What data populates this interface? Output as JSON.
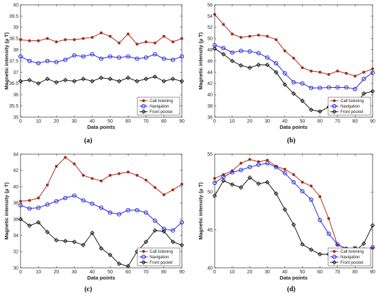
{
  "colors": {
    "call": "#a52a1a",
    "nav": "#2323e0",
    "front": "#111111"
  },
  "chart_data": [
    {
      "id": "a",
      "label": "(a)",
      "type": "line",
      "xlabel": "Data points",
      "ylabel": "Magnetic intensity (μ T)",
      "xlim": [
        0,
        90
      ],
      "ylim": [
        35,
        40
      ],
      "xticks": [
        "0",
        "10",
        "20",
        "30",
        "40",
        "50",
        "60",
        "70",
        "80",
        "90"
      ],
      "yticks": [
        "35",
        "35.5",
        "36",
        "36.5",
        "37",
        "37.5",
        "38",
        "38.5",
        "39",
        "39.5",
        "40"
      ],
      "legend_position": "bottom-right",
      "series": [
        {
          "name": "Call listening",
          "color": "call",
          "marker": "dot",
          "x": [
            0,
            5,
            10,
            15,
            20,
            25,
            30,
            35,
            40,
            45,
            50,
            55,
            60,
            65,
            70,
            75,
            80,
            85,
            90
          ],
          "y": [
            38.45,
            38.4,
            38.4,
            38.5,
            38.35,
            38.45,
            38.45,
            38.5,
            38.55,
            38.75,
            38.6,
            38.3,
            38.7,
            38.25,
            38.35,
            38.3,
            38.6,
            38.35,
            38.5
          ]
        },
        {
          "name": "Navigation",
          "color": "nav",
          "marker": "circle",
          "x": [
            0,
            5,
            10,
            15,
            20,
            25,
            30,
            35,
            40,
            45,
            50,
            55,
            60,
            65,
            70,
            75,
            80,
            85,
            90
          ],
          "y": [
            37.7,
            37.5,
            37.4,
            37.5,
            37.45,
            37.55,
            37.75,
            37.7,
            37.8,
            37.6,
            37.7,
            37.65,
            37.7,
            37.6,
            37.65,
            37.8,
            37.6,
            37.55,
            37.7
          ]
        },
        {
          "name": "Front pocket",
          "color": "front",
          "marker": "diamond",
          "x": [
            0,
            5,
            10,
            15,
            20,
            25,
            30,
            35,
            40,
            45,
            50,
            55,
            60,
            65,
            70,
            75,
            80,
            85,
            90
          ],
          "y": [
            36.6,
            36.65,
            36.5,
            36.7,
            36.55,
            36.65,
            36.6,
            36.7,
            36.6,
            36.75,
            36.7,
            36.6,
            36.75,
            36.6,
            36.7,
            36.8,
            36.6,
            36.7,
            36.6
          ]
        }
      ]
    },
    {
      "id": "b",
      "label": "(b)",
      "type": "line",
      "xlabel": "Data points",
      "ylabel": "Magnetic intensity (μ T)",
      "xlim": [
        0,
        90
      ],
      "ylim": [
        36,
        56
      ],
      "xticks": [
        "0",
        "10",
        "20",
        "30",
        "40",
        "50",
        "60",
        "70",
        "80",
        "90"
      ],
      "yticks": [
        "36",
        "38",
        "40",
        "42",
        "44",
        "46",
        "48",
        "50",
        "52",
        "54",
        "56"
      ],
      "legend_position": "bottom-right",
      "series": [
        {
          "name": "Call listening",
          "color": "call",
          "marker": "dot",
          "x": [
            0,
            5,
            10,
            15,
            20,
            25,
            30,
            35,
            40,
            45,
            50,
            55,
            60,
            65,
            70,
            75,
            80,
            85,
            90
          ],
          "y": [
            54.3,
            52.5,
            50.8,
            50.2,
            50.4,
            50.6,
            50.4,
            49.8,
            47.8,
            46.5,
            44.8,
            44.2,
            44.0,
            43.6,
            44.2,
            43.8,
            43.3,
            44.0,
            44.6
          ]
        },
        {
          "name": "Navigation",
          "color": "nav",
          "marker": "circle",
          "x": [
            0,
            5,
            10,
            15,
            20,
            25,
            30,
            35,
            40,
            45,
            50,
            55,
            60,
            65,
            70,
            75,
            80,
            85,
            90
          ],
          "y": [
            48.8,
            48.3,
            47.5,
            47.8,
            47.7,
            47.4,
            46.6,
            45.6,
            43.8,
            42.2,
            42.0,
            41.2,
            41.2,
            41.3,
            41.3,
            41.3,
            41.0,
            42.8,
            43.9
          ]
        },
        {
          "name": "Front pocket",
          "color": "front",
          "marker": "diamond",
          "x": [
            0,
            5,
            10,
            15,
            20,
            25,
            30,
            35,
            40,
            45,
            50,
            55,
            60,
            65,
            70,
            75,
            80,
            85,
            90
          ],
          "y": [
            48.2,
            47.2,
            46.0,
            45.2,
            44.8,
            45.3,
            45.3,
            44.0,
            41.8,
            40.2,
            38.9,
            37.3,
            37.0,
            37.8,
            37.7,
            37.7,
            38.0,
            40.2,
            40.6
          ]
        }
      ]
    },
    {
      "id": "c",
      "label": "(c)",
      "type": "line",
      "xlabel": "Data points",
      "ylabel": "Magnetic intensity (μ T)",
      "xlim": [
        0,
        90
      ],
      "ylim": [
        30,
        44
      ],
      "xticks": [
        "0",
        "10",
        "20",
        "30",
        "40",
        "50",
        "60",
        "70",
        "80",
        "90"
      ],
      "yticks": [
        "30",
        "32",
        "34",
        "36",
        "38",
        "40",
        "42",
        "44"
      ],
      "legend_position": "bottom-right",
      "series": [
        {
          "name": "Call listening",
          "color": "call",
          "marker": "dot",
          "x": [
            0,
            5,
            10,
            15,
            20,
            25,
            30,
            35,
            40,
            45,
            50,
            55,
            60,
            65,
            70,
            75,
            80,
            85,
            90
          ],
          "y": [
            38.2,
            38.3,
            38.6,
            40.2,
            42.5,
            43.6,
            42.8,
            41.4,
            41.0,
            40.7,
            41.4,
            41.6,
            41.8,
            41.4,
            40.8,
            39.9,
            39.0,
            39.6,
            40.3
          ]
        },
        {
          "name": "Navigation",
          "color": "nav",
          "marker": "circle",
          "x": [
            0,
            5,
            10,
            15,
            20,
            25,
            30,
            35,
            40,
            45,
            50,
            55,
            60,
            65,
            70,
            75,
            80,
            85,
            90
          ],
          "y": [
            37.7,
            37.3,
            37.4,
            37.8,
            38.2,
            38.6,
            38.9,
            38.3,
            37.9,
            37.4,
            36.8,
            36.6,
            37.1,
            37.1,
            36.8,
            35.8,
            34.8,
            34.6,
            35.6
          ]
        },
        {
          "name": "Front pocket",
          "color": "front",
          "marker": "diamond",
          "x": [
            0,
            5,
            10,
            15,
            20,
            25,
            30,
            35,
            40,
            45,
            50,
            55,
            60,
            65,
            70,
            75,
            80,
            85,
            90
          ],
          "y": [
            36.0,
            35.2,
            35.6,
            34.4,
            33.4,
            33.3,
            33.2,
            32.8,
            34.3,
            32.4,
            31.6,
            30.5,
            30.2,
            32.0,
            33.2,
            34.6,
            34.5,
            33.2,
            32.8
          ]
        }
      ]
    },
    {
      "id": "d",
      "label": "(d)",
      "type": "line",
      "xlabel": "Data points",
      "ylabel": "Magnetic intensity (μ T)",
      "xlim": [
        0,
        90
      ],
      "ylim": [
        40,
        55
      ],
      "xticks": [
        "0",
        "10",
        "20",
        "30",
        "40",
        "50",
        "60",
        "70",
        "80",
        "90"
      ],
      "yticks": [
        "40",
        "45",
        "50",
        "55"
      ],
      "legend_position": "bottom-right",
      "series": [
        {
          "name": "Call listening",
          "color": "call",
          "marker": "dot",
          "x": [
            0,
            5,
            10,
            15,
            20,
            25,
            30,
            35,
            40,
            45,
            50,
            55,
            60,
            65,
            70,
            75,
            80,
            85,
            90
          ],
          "y": [
            51.8,
            52.3,
            52.8,
            53.8,
            54.3,
            54.0,
            54.2,
            53.4,
            53.0,
            52.3,
            51.3,
            50.8,
            49.4,
            46.5,
            43.0,
            42.6,
            42.6,
            42.5,
            42.6
          ]
        },
        {
          "name": "Navigation",
          "color": "nav",
          "marker": "circle",
          "x": [
            0,
            5,
            10,
            15,
            20,
            25,
            30,
            35,
            40,
            45,
            50,
            55,
            60,
            65,
            70,
            75,
            80,
            85,
            90
          ],
          "y": [
            51.2,
            52.0,
            52.6,
            52.9,
            53.3,
            53.6,
            53.8,
            53.3,
            52.5,
            51.3,
            50.1,
            49.0,
            46.3,
            44.5,
            43.1,
            42.5,
            42.6,
            42.4,
            42.7
          ]
        },
        {
          "name": "Front pocket",
          "color": "front",
          "marker": "diamond",
          "x": [
            0,
            5,
            10,
            15,
            20,
            25,
            30,
            35,
            40,
            45,
            50,
            55,
            60,
            65,
            70,
            75,
            80,
            85,
            90
          ],
          "y": [
            49.5,
            51.5,
            51.0,
            50.6,
            51.9,
            51.1,
            51.3,
            49.8,
            47.7,
            45.7,
            43.1,
            42.4,
            41.8,
            41.8,
            42.0,
            42.0,
            42.2,
            43.2,
            45.6
          ]
        }
      ]
    }
  ]
}
